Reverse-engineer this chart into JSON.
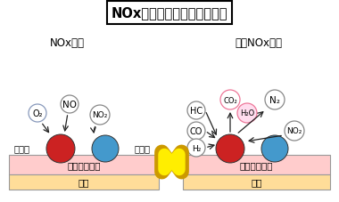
{
  "title": "NOx吸蔵触媒の浄化イメージ",
  "bg_color": "#ffffff",
  "left_label": "NOx吸蔵",
  "right_label": "吸蔵NOx還元",
  "left_side_label_noble": "貴金属",
  "left_side_label_abs": "吸蔵材",
  "catalyst_layer_text": "触媒コート層",
  "base_text": "基材",
  "catalyst_color": "#ffcccc",
  "base_color": "#ffdd99",
  "noble_color": "#cc2222",
  "abs_color": "#4499cc",
  "double_arrow_color": "#ffee00",
  "double_arrow_border": "#cc9900"
}
